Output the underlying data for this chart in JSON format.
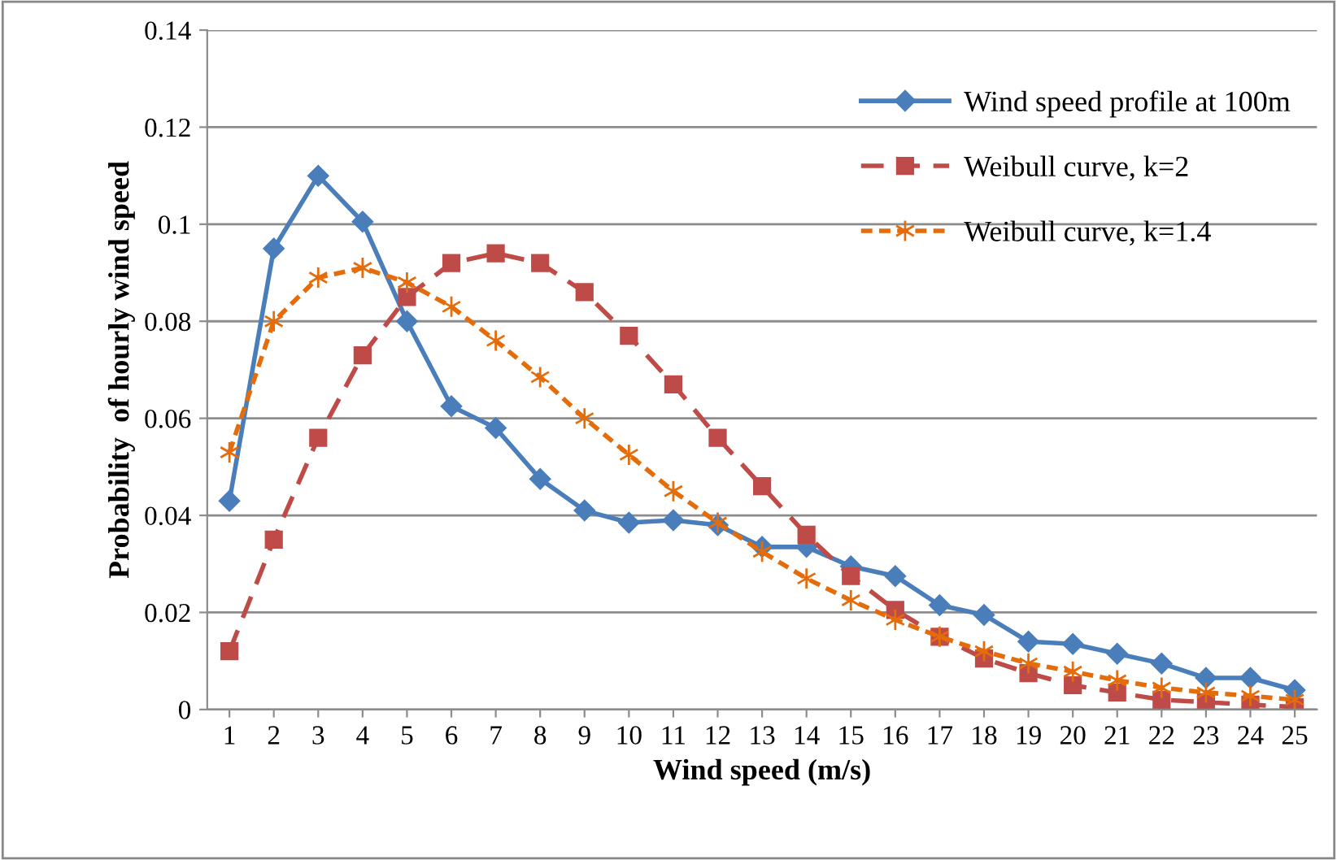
{
  "chart_data": {
    "type": "line",
    "xlabel": "Wind speed (m/s)",
    "ylabel": "Probability  of hourly wind speed",
    "categories": [
      "1",
      "2",
      "3",
      "4",
      "5",
      "6",
      "7",
      "8",
      "9",
      "10",
      "11",
      "12",
      "13",
      "14",
      "15",
      "16",
      "17",
      "18",
      "19",
      "20",
      "21",
      "22",
      "23",
      "24",
      "25"
    ],
    "series": [
      {
        "name": "Wind speed profile at 100m",
        "color": "#4a7ebb",
        "marker": "diamond",
        "line_style": "solid",
        "values": [
          0.043,
          0.095,
          0.11,
          0.1005,
          0.08,
          0.0625,
          0.058,
          0.0475,
          0.041,
          0.0385,
          0.039,
          0.038,
          0.0335,
          0.0335,
          0.0295,
          0.0275,
          0.0215,
          0.0195,
          0.014,
          0.0135,
          0.0115,
          0.0095,
          0.0065,
          0.0065,
          0.004
        ]
      },
      {
        "name": "Weibull curve, k=2",
        "color": "#be4b48",
        "marker": "square",
        "line_style": "dashed",
        "values": [
          0.012,
          0.035,
          0.056,
          0.073,
          0.085,
          0.092,
          0.094,
          0.092,
          0.086,
          0.077,
          0.067,
          0.056,
          0.046,
          0.036,
          0.0275,
          0.0205,
          0.015,
          0.0105,
          0.0075,
          0.005,
          0.0035,
          0.002,
          0.0015,
          0.001,
          0.0005
        ]
      },
      {
        "name": "Weibull curve, k=1.4",
        "color": "#e46c0a",
        "marker": "cross",
        "line_style": "dotted",
        "values": [
          0.053,
          0.08,
          0.089,
          0.091,
          0.088,
          0.083,
          0.076,
          0.0685,
          0.06,
          0.0525,
          0.045,
          0.0385,
          0.0325,
          0.027,
          0.0225,
          0.0185,
          0.015,
          0.012,
          0.0095,
          0.0078,
          0.006,
          0.0045,
          0.0035,
          0.0028,
          0.002
        ]
      }
    ],
    "ylim": [
      0,
      0.14
    ],
    "yticks": [
      {
        "value": 0,
        "label": "0"
      },
      {
        "value": 0.02,
        "label": "0.02"
      },
      {
        "value": 0.04,
        "label": "0.04"
      },
      {
        "value": 0.06,
        "label": "0.06"
      },
      {
        "value": 0.08,
        "label": "0.08"
      },
      {
        "value": 0.1,
        "label": "0.1"
      },
      {
        "value": 0.12,
        "label": "0.12"
      },
      {
        "value": 0.14,
        "label": "0.14"
      }
    ],
    "grid": "y",
    "legend": "top right"
  }
}
